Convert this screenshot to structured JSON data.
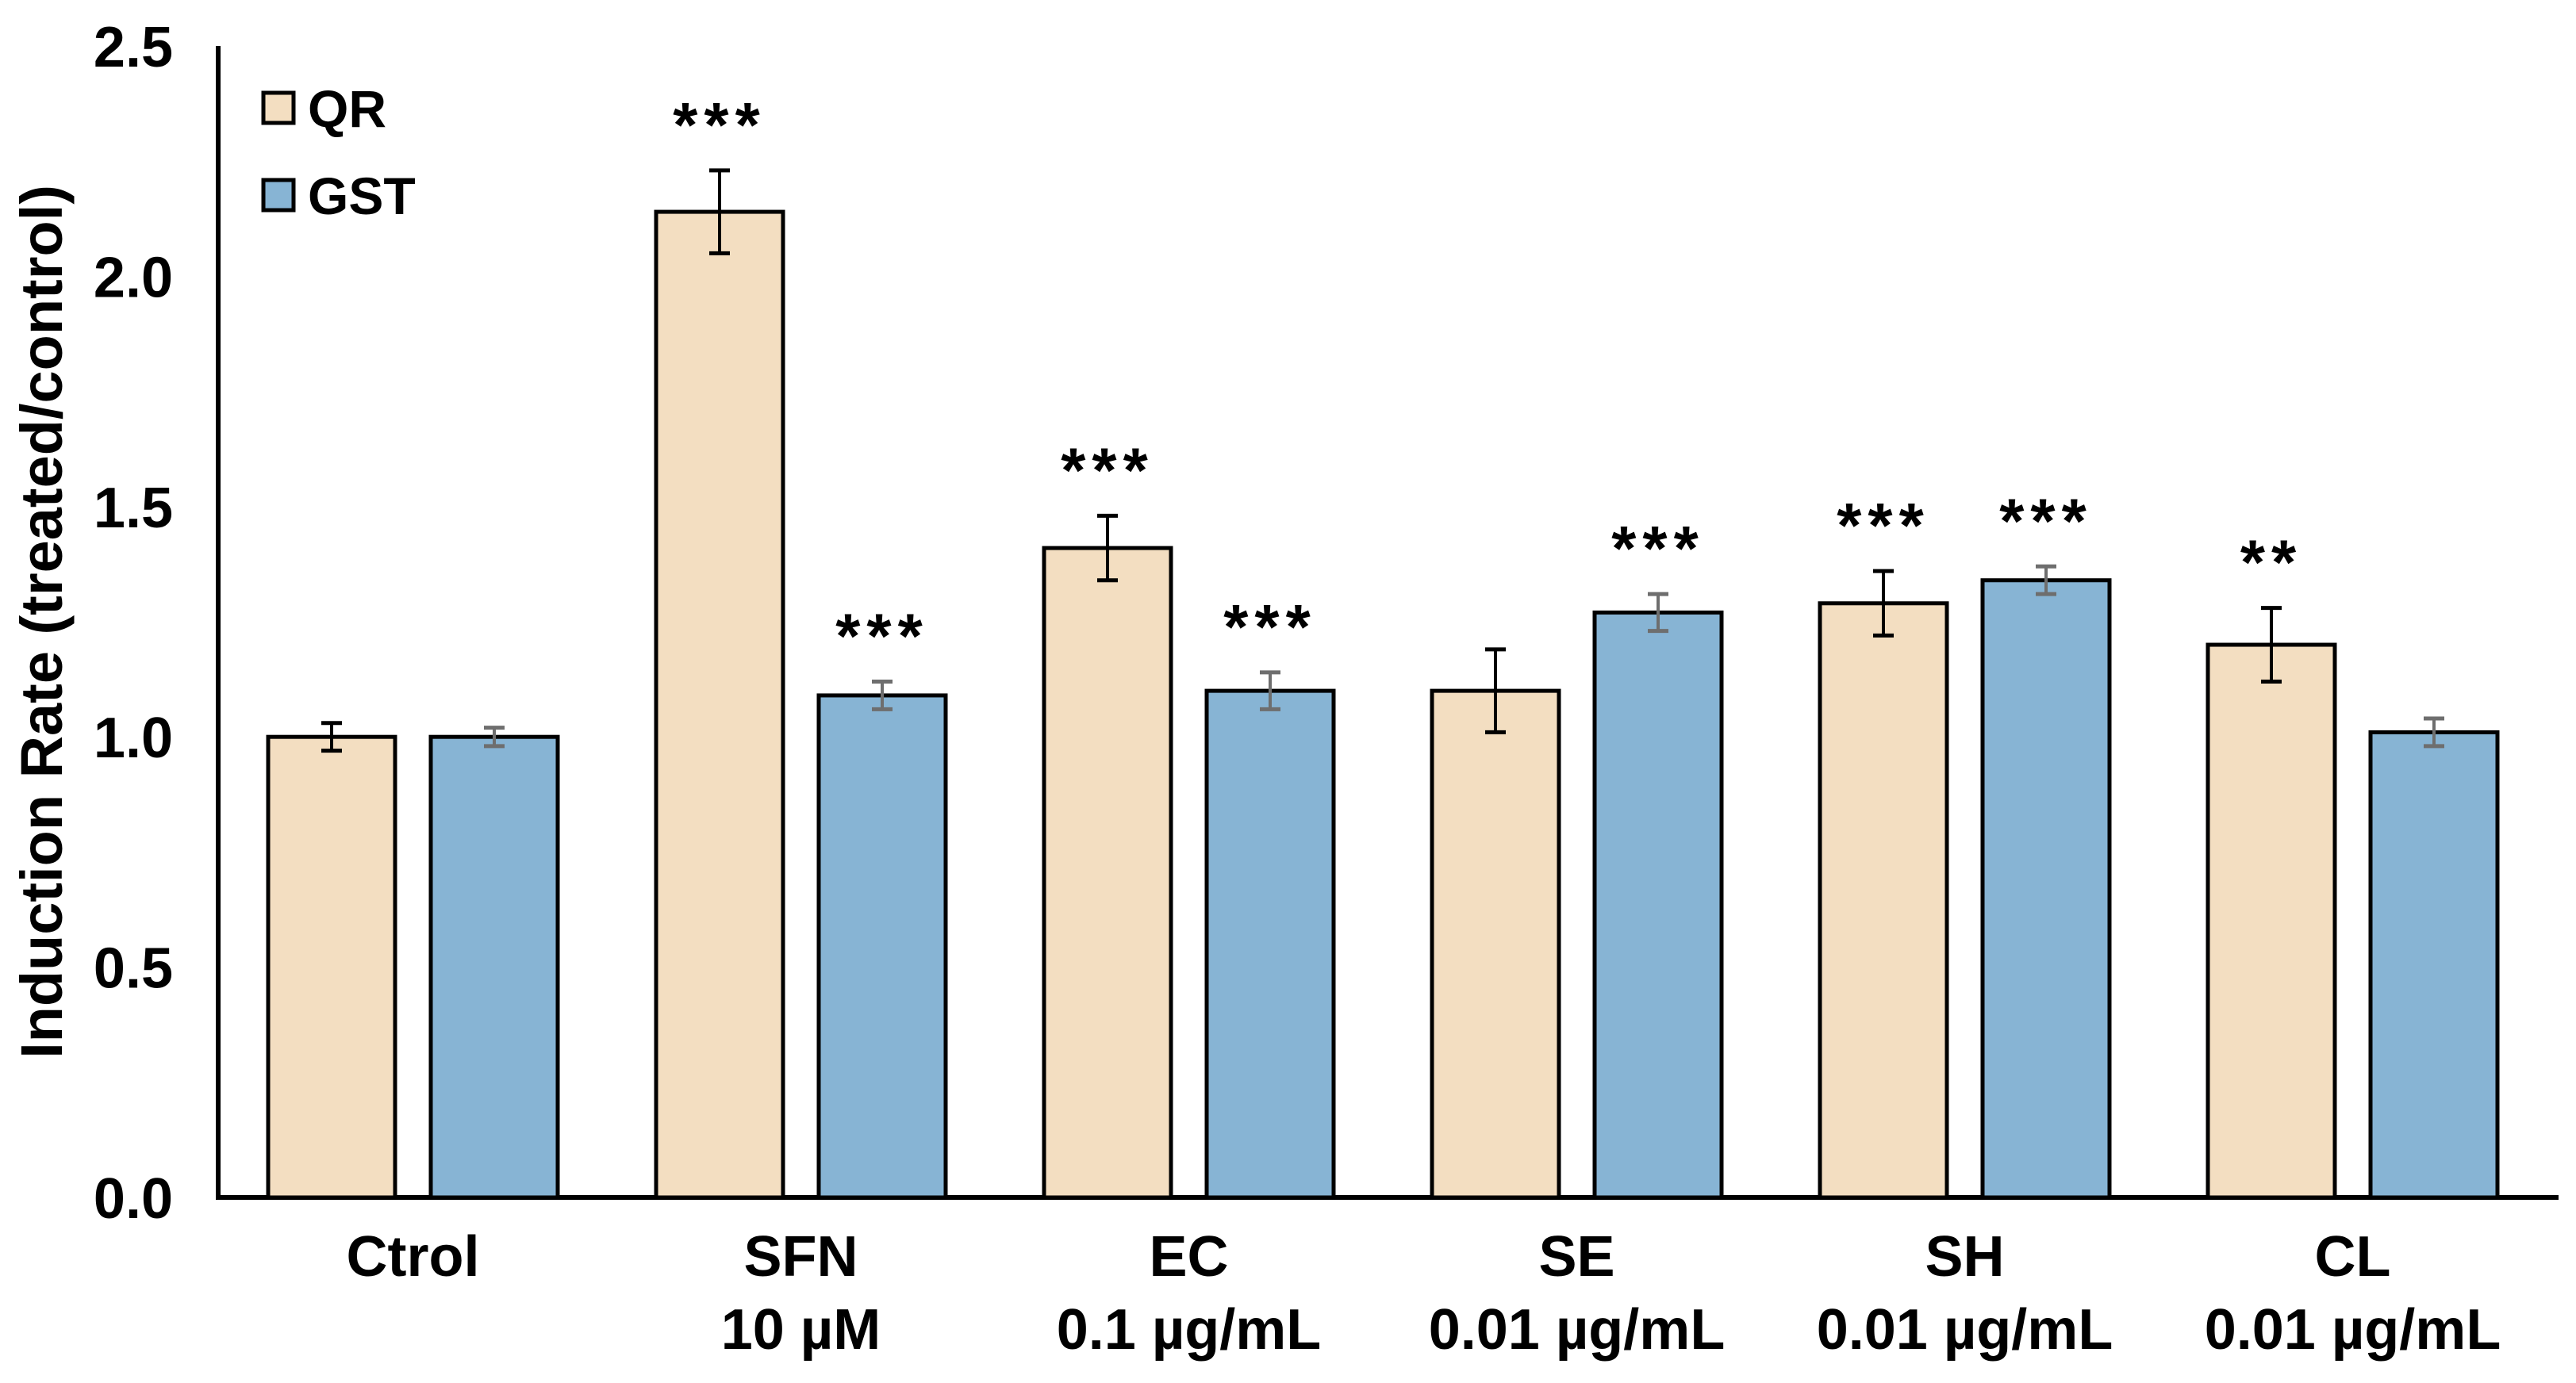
{
  "chart_data": {
    "type": "bar",
    "title": "",
    "xlabel": "",
    "ylabel": "Induction Rate (treated/control)",
    "ylim": [
      0.0,
      2.5
    ],
    "yticks": [
      0.0,
      0.5,
      1.0,
      1.5,
      2.0,
      2.5
    ],
    "ytick_labels": [
      "0.0",
      "0.5",
      "1.0",
      "1.5",
      "2.0",
      "2.5"
    ],
    "grid": false,
    "legend_position": "top-left-inside",
    "categories": [
      "Ctrol",
      "SFN",
      "EC",
      "SE",
      "SH",
      "CL"
    ],
    "category_doses": [
      "",
      "10 µM",
      "0.1 µg/mL",
      "0.01 µg/mL",
      "0.01 µg/mL",
      "0.01 µg/mL"
    ],
    "series": [
      {
        "name": "QR",
        "color": "#F3DEC1",
        "border_color": "#000000",
        "error_color": "#000000",
        "values": [
          1.0,
          2.14,
          1.41,
          1.1,
          1.29,
          1.2
        ],
        "errors": [
          0.03,
          0.09,
          0.07,
          0.09,
          0.07,
          0.08
        ],
        "significance": [
          "",
          "***",
          "***",
          "",
          "***",
          "**"
        ]
      },
      {
        "name": "GST",
        "color": "#87B4D4",
        "border_color": "#000000",
        "error_color": "#6E6E6E",
        "values": [
          1.0,
          1.09,
          1.1,
          1.27,
          1.34,
          1.01
        ],
        "errors": [
          0.02,
          0.03,
          0.04,
          0.04,
          0.03,
          0.03
        ],
        "significance": [
          "",
          "***",
          "***",
          "***",
          "***",
          ""
        ]
      }
    ]
  }
}
